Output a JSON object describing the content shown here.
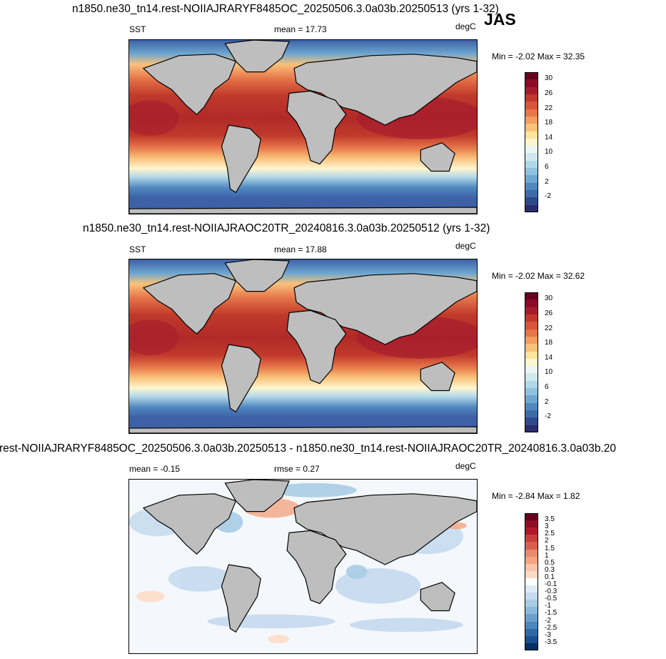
{
  "season": "JAS",
  "panels": [
    {
      "title": "n1850.ne30_tn14.rest-NOIIAJRARYF8485OC_20250506.3.0a03b.20250513 (yrs 1-32)",
      "left_label": "SST",
      "center_label": "mean =  17.73",
      "units": "degC",
      "minmax": "Min = -2.02 Max =  32.35",
      "colorbar_labels": [
        "30",
        "26",
        "22",
        "18",
        "14",
        "10",
        "6",
        "2",
        "-2"
      ],
      "colors": [
        "#67001f",
        "#8b0a26",
        "#a51d2d",
        "#c0392b",
        "#d6553a",
        "#e7764a",
        "#f29e5e",
        "#f9c27a",
        "#fde39c",
        "#fff5cf",
        "#eaf6f4",
        "#cfe9ef",
        "#b1d8e8",
        "#8fc2de",
        "#6ea7d0",
        "#5088bf",
        "#3d6ba8",
        "#30498c",
        "#2a2d6b"
      ]
    },
    {
      "title": "n1850.ne30_tn14.rest-NOIIAJRAOC20TR_20240816.3.0a03b.20250512 (yrs 1-32)",
      "left_label": "SST",
      "center_label": "mean =  17.88",
      "units": "degC",
      "minmax": "Min = -2.02 Max =  32.62",
      "colorbar_labels": [
        "30",
        "26",
        "22",
        "18",
        "14",
        "10",
        "6",
        "2",
        "-2"
      ],
      "colors": [
        "#67001f",
        "#8b0a26",
        "#a51d2d",
        "#c0392b",
        "#d6553a",
        "#e7764a",
        "#f29e5e",
        "#f9c27a",
        "#fde39c",
        "#fff5cf",
        "#eaf6f4",
        "#cfe9ef",
        "#b1d8e8",
        "#8fc2de",
        "#6ea7d0",
        "#5088bf",
        "#3d6ba8",
        "#30498c",
        "#2a2d6b"
      ]
    },
    {
      "title": "rest-NOIIAJRARYF8485OC_20250506.3.0a03b.20250513 - n1850.ne30_tn14.rest-NOIIAJRAOC20TR_20240816.3.0a03b.20",
      "left_label": "mean =  -0.15",
      "center_label": "rmse =   0.27",
      "units": "degC",
      "minmax": "Min = -2.84 Max =   1.82",
      "colorbar_labels": [
        "3.5",
        "3",
        "2.5",
        "2",
        "1.5",
        "1",
        "0.5",
        "0.3",
        "0.1",
        "-0.1",
        "-0.3",
        "-0.5",
        "-1",
        "-1.5",
        "-2",
        "-2.5",
        "-3",
        "-3.5"
      ],
      "colors": [
        "#67001f",
        "#8e0c25",
        "#b2182b",
        "#c63f3a",
        "#d6604d",
        "#e88b6e",
        "#f4a582",
        "#f9c6ac",
        "#fddbc7",
        "#ffffff",
        "#deebf7",
        "#c6dbef",
        "#a8cce4",
        "#8cb9da",
        "#6aa1cc",
        "#4a87bf",
        "#2f6aa8",
        "#1d4f8e",
        "#053061"
      ]
    }
  ]
}
